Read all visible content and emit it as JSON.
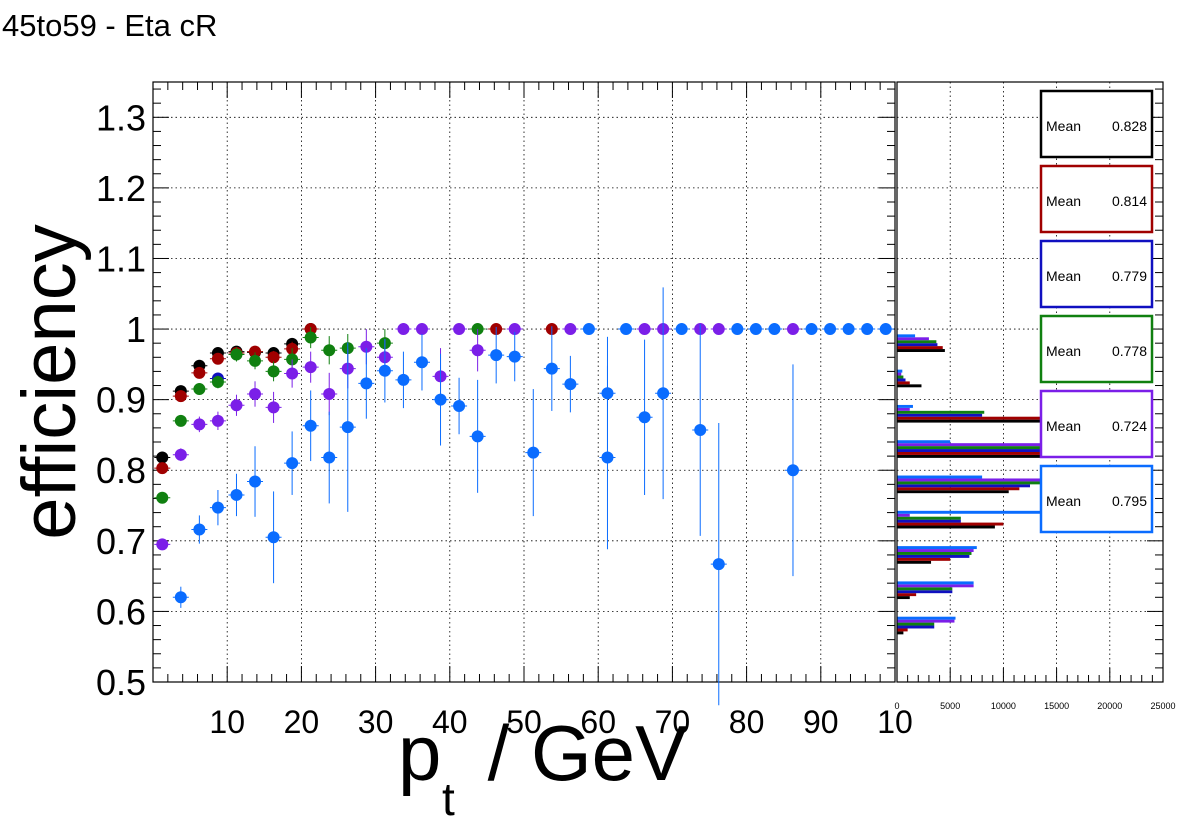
{
  "title": "45to59 - Eta cR",
  "chart_data": [
    {
      "type": "scatter",
      "title": "45to59 - Eta cR",
      "xlabel_main": "p",
      "xlabel_sub": "t",
      "xlabel_rest": " / GeV",
      "ylabel": "efficiency",
      "xlim": [
        0,
        100
      ],
      "ylim": [
        0.5,
        1.35
      ],
      "x_ticks": [
        "10",
        "20",
        "30",
        "40",
        "50",
        "60",
        "70",
        "80",
        "90",
        "10"
      ],
      "y_ticks": [
        "0.5",
        "0.6",
        "0.7",
        "0.8",
        "0.9",
        "1",
        "1.1",
        "1.2",
        "1.3"
      ],
      "grid": true,
      "series": [
        {
          "color": "#000000",
          "points": [
            {
              "x": 1.25,
              "y": 0.818,
              "err": 0.006
            },
            {
              "x": 3.75,
              "y": 0.912,
              "err": 0.005
            },
            {
              "x": 6.25,
              "y": 0.948,
              "err": 0.005
            },
            {
              "x": 8.75,
              "y": 0.966,
              "err": 0.005
            },
            {
              "x": 11.25,
              "y": 0.968,
              "err": 0.006
            },
            {
              "x": 13.75,
              "y": 0.967,
              "err": 0.007
            },
            {
              "x": 16.25,
              "y": 0.966,
              "err": 0.008
            },
            {
              "x": 18.75,
              "y": 0.979,
              "err": 0.008
            },
            {
              "x": 21.25,
              "y": 1.0,
              "err": 0.0
            }
          ]
        },
        {
          "color": "#a00000",
          "points": [
            {
              "x": 1.25,
              "y": 0.803,
              "err": 0.007
            },
            {
              "x": 3.75,
              "y": 0.905,
              "err": 0.006
            },
            {
              "x": 6.25,
              "y": 0.938,
              "err": 0.006
            },
            {
              "x": 8.75,
              "y": 0.958,
              "err": 0.006
            },
            {
              "x": 11.25,
              "y": 0.966,
              "err": 0.007
            },
            {
              "x": 13.75,
              "y": 0.968,
              "err": 0.008
            },
            {
              "x": 16.25,
              "y": 0.96,
              "err": 0.009
            },
            {
              "x": 18.75,
              "y": 0.972,
              "err": 0.01
            },
            {
              "x": 21.25,
              "y": 1.0,
              "err": 0.0
            },
            {
              "x": 46.25,
              "y": 1.0,
              "err": 0.0
            },
            {
              "x": 53.75,
              "y": 1.0,
              "err": 0.0
            }
          ]
        },
        {
          "color": "#1010c0",
          "points": [
            {
              "x": 8.75,
              "y": 0.93,
              "err": 0.008
            }
          ]
        },
        {
          "color": "#108010",
          "points": [
            {
              "x": 1.25,
              "y": 0.761,
              "err": 0.008
            },
            {
              "x": 3.75,
              "y": 0.87,
              "err": 0.008
            },
            {
              "x": 6.25,
              "y": 0.915,
              "err": 0.008
            },
            {
              "x": 8.75,
              "y": 0.925,
              "err": 0.009
            },
            {
              "x": 11.25,
              "y": 0.964,
              "err": 0.01
            },
            {
              "x": 13.75,
              "y": 0.955,
              "err": 0.012
            },
            {
              "x": 16.25,
              "y": 0.94,
              "err": 0.014
            },
            {
              "x": 18.75,
              "y": 0.957,
              "err": 0.016
            },
            {
              "x": 21.25,
              "y": 0.988,
              "err": 0.015
            },
            {
              "x": 23.75,
              "y": 0.97,
              "err": 0.02
            },
            {
              "x": 26.25,
              "y": 0.973,
              "err": 0.02
            },
            {
              "x": 31.25,
              "y": 0.98,
              "err": 0.02
            },
            {
              "x": 43.75,
              "y": 1.0,
              "err": 0.0
            }
          ]
        },
        {
          "color": "#7b1fe8",
          "points": [
            {
              "x": 1.25,
              "y": 0.695,
              "err": 0.008
            },
            {
              "x": 3.75,
              "y": 0.822,
              "err": 0.009
            },
            {
              "x": 6.25,
              "y": 0.865,
              "err": 0.011
            },
            {
              "x": 8.75,
              "y": 0.87,
              "err": 0.013
            },
            {
              "x": 11.25,
              "y": 0.892,
              "err": 0.015
            },
            {
              "x": 13.75,
              "y": 0.908,
              "err": 0.018
            },
            {
              "x": 16.25,
              "y": 0.889,
              "err": 0.022
            },
            {
              "x": 18.75,
              "y": 0.937,
              "err": 0.02
            },
            {
              "x": 21.25,
              "y": 0.946,
              "err": 0.022
            },
            {
              "x": 23.75,
              "y": 0.908,
              "err": 0.03
            },
            {
              "x": 26.25,
              "y": 0.944,
              "err": 0.028
            },
            {
              "x": 28.75,
              "y": 0.975,
              "err": 0.025
            },
            {
              "x": 31.25,
              "y": 0.96,
              "err": 0.025
            },
            {
              "x": 33.75,
              "y": 1.0,
              "err": 0.0
            },
            {
              "x": 36.25,
              "y": 1.0,
              "err": 0.0
            },
            {
              "x": 38.75,
              "y": 0.933,
              "err": 0.04
            },
            {
              "x": 41.25,
              "y": 1.0,
              "err": 0.0
            },
            {
              "x": 43.75,
              "y": 0.97,
              "err": 0.03
            },
            {
              "x": 48.75,
              "y": 1.0,
              "err": 0.0
            },
            {
              "x": 56.25,
              "y": 1.0,
              "err": 0.0
            },
            {
              "x": 66.25,
              "y": 1.0,
              "err": 0.0
            },
            {
              "x": 68.75,
              "y": 1.0,
              "err": 0.0
            },
            {
              "x": 73.75,
              "y": 1.0,
              "err": 0.0
            },
            {
              "x": 76.25,
              "y": 1.0,
              "err": 0.0
            },
            {
              "x": 86.25,
              "y": 1.0,
              "err": 0.0
            }
          ]
        },
        {
          "color": "#0a6cff",
          "points": [
            {
              "x": 3.75,
              "y": 0.62,
              "err": 0.015
            },
            {
              "x": 6.25,
              "y": 0.716,
              "err": 0.02
            },
            {
              "x": 8.75,
              "y": 0.747,
              "err": 0.025
            },
            {
              "x": 11.25,
              "y": 0.765,
              "err": 0.03
            },
            {
              "x": 13.75,
              "y": 0.784,
              "err": 0.05
            },
            {
              "x": 16.25,
              "y": 0.705,
              "err": 0.065
            },
            {
              "x": 18.75,
              "y": 0.81,
              "err": 0.045
            },
            {
              "x": 21.25,
              "y": 0.863,
              "err": 0.05
            },
            {
              "x": 23.75,
              "y": 0.818,
              "err": 0.065
            },
            {
              "x": 26.25,
              "y": 0.861,
              "err": 0.12
            },
            {
              "x": 28.75,
              "y": 0.923,
              "err": 0.05
            },
            {
              "x": 31.25,
              "y": 0.941,
              "err": 0.045
            },
            {
              "x": 33.75,
              "y": 0.928,
              "err": 0.04
            },
            {
              "x": 36.25,
              "y": 0.953,
              "err": 0.04
            },
            {
              "x": 38.75,
              "y": 0.9,
              "err": 0.065
            },
            {
              "x": 41.25,
              "y": 0.891,
              "err": 0.04
            },
            {
              "x": 43.75,
              "y": 0.848,
              "err": 0.08
            },
            {
              "x": 46.25,
              "y": 0.963,
              "err": 0.04
            },
            {
              "x": 48.75,
              "y": 0.961,
              "err": 0.035
            },
            {
              "x": 51.25,
              "y": 0.825,
              "err": 0.09
            },
            {
              "x": 53.75,
              "y": 0.944,
              "err": 0.06
            },
            {
              "x": 56.25,
              "y": 0.922,
              "err": 0.04
            },
            {
              "x": 58.75,
              "y": 1.0,
              "err": 0.0
            },
            {
              "x": 61.25,
              "y": 0.909,
              "err": 0.08
            },
            {
              "x": 61.25,
              "y": 0.818,
              "err": 0.13
            },
            {
              "x": 63.75,
              "y": 1.0,
              "err": 0.0
            },
            {
              "x": 66.25,
              "y": 0.875,
              "err": 0.11
            },
            {
              "x": 68.75,
              "y": 0.909,
              "err": 0.15
            },
            {
              "x": 71.25,
              "y": 1.0,
              "err": 0.0
            },
            {
              "x": 73.75,
              "y": 0.857,
              "err": 0.15
            },
            {
              "x": 76.25,
              "y": 0.667,
              "err": 0.2
            },
            {
              "x": 78.75,
              "y": 1.0,
              "err": 0.0
            },
            {
              "x": 81.25,
              "y": 1.0,
              "err": 0.0
            },
            {
              "x": 83.75,
              "y": 1.0,
              "err": 0.0
            },
            {
              "x": 86.25,
              "y": 0.8,
              "err": 0.15
            },
            {
              "x": 88.75,
              "y": 1.0,
              "err": 0.0
            },
            {
              "x": 91.25,
              "y": 1.0,
              "err": 0.0
            },
            {
              "x": 93.75,
              "y": 1.0,
              "err": 0.0
            },
            {
              "x": 96.25,
              "y": 1.0,
              "err": 0.0
            },
            {
              "x": 98.75,
              "y": 1.0,
              "err": 0.0
            }
          ]
        }
      ]
    },
    {
      "type": "bar",
      "orientation": "horizontal",
      "x_ticks": [
        "0",
        "5000",
        "10000",
        "15000",
        "20000",
        "25000"
      ],
      "xlim": [
        0,
        25000
      ],
      "ylim": [
        0.5,
        1.35
      ],
      "stats_label": "Mean",
      "series": [
        {
          "color": "#000000",
          "mean": "0.828",
          "bins": [
            {
              "y": 0.975,
              "v": 4500
            },
            {
              "y": 0.925,
              "v": 2300
            },
            {
              "y": 0.875,
              "v": 23000
            },
            {
              "y": 0.825,
              "v": 22000
            },
            {
              "y": 0.775,
              "v": 10500
            },
            {
              "y": 0.725,
              "v": 9200
            },
            {
              "y": 0.675,
              "v": 3200
            },
            {
              "y": 0.625,
              "v": 1200
            },
            {
              "y": 0.575,
              "v": 600
            }
          ]
        },
        {
          "color": "#a00000",
          "mean": "0.814",
          "bins": [
            {
              "y": 0.975,
              "v": 4300
            },
            {
              "y": 0.925,
              "v": 1200
            },
            {
              "y": 0.875,
              "v": 18000
            },
            {
              "y": 0.825,
              "v": 20000
            },
            {
              "y": 0.775,
              "v": 11500
            },
            {
              "y": 0.725,
              "v": 10000
            },
            {
              "y": 0.675,
              "v": 5000
            },
            {
              "y": 0.625,
              "v": 1800
            },
            {
              "y": 0.575,
              "v": 1000
            }
          ]
        },
        {
          "color": "#1010c0",
          "mean": "0.779",
          "bins": [
            {
              "y": 0.975,
              "v": 3800
            },
            {
              "y": 0.925,
              "v": 800
            },
            {
              "y": 0.875,
              "v": 8000
            },
            {
              "y": 0.825,
              "v": 16500
            },
            {
              "y": 0.775,
              "v": 12500
            },
            {
              "y": 0.725,
              "v": 6000
            },
            {
              "y": 0.675,
              "v": 6800
            },
            {
              "y": 0.625,
              "v": 5200
            },
            {
              "y": 0.575,
              "v": 3500
            }
          ]
        },
        {
          "color": "#108010",
          "mean": "0.778",
          "bins": [
            {
              "y": 0.975,
              "v": 3700
            },
            {
              "y": 0.925,
              "v": 600
            },
            {
              "y": 0.875,
              "v": 8200
            },
            {
              "y": 0.825,
              "v": 14000
            },
            {
              "y": 0.775,
              "v": 13500
            },
            {
              "y": 0.725,
              "v": 6000
            },
            {
              "y": 0.675,
              "v": 7000
            },
            {
              "y": 0.625,
              "v": 5200
            },
            {
              "y": 0.575,
              "v": 3500
            }
          ]
        },
        {
          "color": "#7b1fe8",
          "mean": "0.724",
          "bins": [
            {
              "y": 0.975,
              "v": 3000
            },
            {
              "y": 0.925,
              "v": 400
            },
            {
              "y": 0.875,
              "v": 1200
            },
            {
              "y": 0.825,
              "v": 13800
            },
            {
              "y": 0.775,
              "v": 14000
            },
            {
              "y": 0.725,
              "v": 1200
            },
            {
              "y": 0.675,
              "v": 7200
            },
            {
              "y": 0.625,
              "v": 7200
            },
            {
              "y": 0.575,
              "v": 5400
            }
          ]
        },
        {
          "color": "#0a6cff",
          "mean": "0.795",
          "bins": [
            {
              "y": 0.975,
              "v": 1700
            },
            {
              "y": 0.925,
              "v": 500
            },
            {
              "y": 0.875,
              "v": 1500
            },
            {
              "y": 0.825,
              "v": 5000
            },
            {
              "y": 0.775,
              "v": 8000
            },
            {
              "y": 0.725,
              "v": 14500
            },
            {
              "y": 0.675,
              "v": 7500
            },
            {
              "y": 0.625,
              "v": 7200
            },
            {
              "y": 0.575,
              "v": 5500
            }
          ]
        }
      ]
    }
  ]
}
